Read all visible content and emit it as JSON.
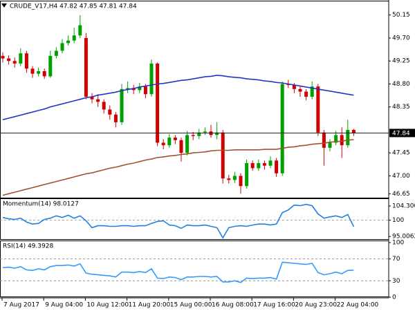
{
  "chart_data": [
    {
      "type": "candlestick",
      "title": "CRUDE_V17,H4  47.82 47.85 47.81 47.84",
      "categories": [
        "7 Aug 2017",
        null,
        null,
        null,
        null,
        null,
        null,
        "9 Aug 04:00",
        null,
        null,
        null,
        null,
        null,
        null,
        "10 Aug 12:00",
        null,
        null,
        null,
        null,
        null,
        null,
        "11 Aug 20:00",
        null,
        null,
        null,
        null,
        null,
        null,
        "15 Aug 00:00",
        null,
        null,
        null,
        null,
        null,
        null,
        "16 Aug 08:00",
        null,
        null,
        null,
        null,
        null,
        null,
        "17 Aug 16:00",
        null,
        null,
        null,
        null,
        null,
        null,
        "20 Aug 23:00",
        null,
        null,
        null,
        null,
        null,
        null,
        "22 Aug 04:00",
        null,
        null,
        null
      ],
      "open": [
        49.35,
        49.3,
        49.25,
        49.2,
        49.4,
        49.1,
        49.0,
        49.05,
        48.95,
        49.35,
        49.45,
        49.6,
        49.65,
        49.75,
        49.7,
        48.55,
        48.5,
        48.45,
        48.3,
        48.2,
        48.05,
        48.7,
        48.72,
        48.68,
        48.75,
        48.6,
        49.2,
        47.65,
        47.6,
        47.75,
        47.7,
        47.45,
        47.8,
        47.78,
        47.85,
        47.87,
        47.8,
        47.85,
        46.95,
        46.92,
        47.0,
        46.8,
        47.25,
        47.15,
        47.25,
        47.2,
        47.3,
        47.05,
        48.8,
        48.78,
        48.7,
        48.65,
        48.55,
        48.75,
        47.85,
        47.55,
        47.65,
        47.8,
        47.6,
        47.9
      ],
      "high": [
        49.42,
        49.36,
        49.32,
        49.5,
        49.45,
        49.15,
        49.12,
        49.1,
        49.45,
        49.52,
        49.68,
        49.75,
        49.9,
        50.15,
        49.8,
        48.62,
        48.6,
        48.5,
        48.38,
        48.25,
        48.8,
        48.85,
        48.78,
        48.82,
        48.8,
        49.28,
        49.22,
        47.72,
        47.82,
        47.8,
        47.75,
        47.88,
        47.86,
        47.92,
        47.95,
        48.0,
        48.05,
        47.9,
        47.02,
        47.08,
        47.05,
        47.32,
        47.3,
        47.32,
        47.3,
        47.38,
        47.35,
        48.85,
        48.88,
        48.82,
        48.75,
        48.7,
        48.85,
        48.8,
        47.9,
        47.72,
        47.88,
        47.95,
        48.1,
        47.92
      ],
      "low": [
        49.22,
        49.18,
        49.12,
        49.15,
        49.02,
        48.92,
        48.95,
        48.9,
        48.92,
        49.3,
        49.4,
        49.55,
        49.6,
        49.7,
        48.5,
        48.42,
        48.35,
        48.22,
        48.1,
        47.95,
        48.0,
        48.62,
        48.6,
        48.62,
        48.52,
        48.55,
        47.58,
        47.52,
        47.55,
        47.62,
        47.28,
        47.4,
        47.7,
        47.72,
        47.8,
        47.75,
        47.72,
        46.85,
        46.85,
        46.86,
        46.65,
        46.75,
        47.1,
        47.1,
        47.12,
        47.15,
        46.98,
        47.0,
        48.72,
        48.62,
        48.55,
        48.48,
        48.5,
        47.78,
        47.2,
        47.48,
        47.6,
        47.35,
        47.55,
        47.78
      ],
      "close": [
        49.3,
        49.25,
        49.2,
        49.4,
        49.1,
        49.0,
        49.05,
        48.95,
        49.35,
        49.45,
        49.6,
        49.65,
        49.75,
        49.95,
        48.55,
        48.5,
        48.45,
        48.3,
        48.2,
        48.05,
        48.7,
        48.72,
        48.68,
        48.75,
        48.6,
        49.2,
        47.65,
        47.6,
        47.75,
        47.7,
        47.45,
        47.8,
        47.78,
        47.85,
        47.87,
        47.8,
        47.85,
        46.95,
        46.92,
        47.0,
        46.8,
        47.25,
        47.15,
        47.25,
        47.2,
        47.3,
        47.05,
        48.8,
        48.78,
        48.7,
        48.65,
        48.55,
        48.75,
        47.85,
        47.55,
        47.65,
        47.8,
        47.6,
        47.9,
        47.84
      ],
      "up_color": "#00a000",
      "down_color": "#d00000",
      "series": [
        {
          "color": "#2233cc",
          "values": [
            48.1,
            48.13,
            48.16,
            48.19,
            48.22,
            48.25,
            48.28,
            48.31,
            48.35,
            48.38,
            48.41,
            48.44,
            48.47,
            48.5,
            48.53,
            48.55,
            48.58,
            48.6,
            48.62,
            48.64,
            48.67,
            48.69,
            48.71,
            48.74,
            48.76,
            48.78,
            48.8,
            48.81,
            48.83,
            48.85,
            48.87,
            48.88,
            48.9,
            48.92,
            48.94,
            48.95,
            48.97,
            48.96,
            48.94,
            48.93,
            48.92,
            48.9,
            48.89,
            48.88,
            48.86,
            48.85,
            48.83,
            48.82,
            48.8,
            48.78,
            48.76,
            48.74,
            48.72,
            48.7,
            48.68,
            48.66,
            48.64,
            48.62,
            48.6,
            48.58
          ]
        },
        {
          "color": "#a0522d",
          "values": [
            46.62,
            46.65,
            46.68,
            46.71,
            46.74,
            46.77,
            46.8,
            46.83,
            46.86,
            46.89,
            46.92,
            46.95,
            46.98,
            47.01,
            47.04,
            47.06,
            47.09,
            47.12,
            47.15,
            47.17,
            47.2,
            47.23,
            47.25,
            47.28,
            47.31,
            47.33,
            47.36,
            47.37,
            47.39,
            47.4,
            47.42,
            47.43,
            47.45,
            47.46,
            47.47,
            47.49,
            47.5,
            47.5,
            47.5,
            47.51,
            47.51,
            47.51,
            47.51,
            47.51,
            47.52,
            47.52,
            47.52,
            47.54,
            47.56,
            47.57,
            47.59,
            47.6,
            47.62,
            47.63,
            47.64,
            47.66,
            47.67,
            47.68,
            47.7,
            47.71
          ]
        }
      ],
      "last_price": 47.84,
      "ylim": [
        46.56,
        50.39
      ],
      "yticks": [
        50.15,
        {
          "value": 49.7,
          "label": "49.70"
        },
        49.25,
        {
          "value": 48.8,
          "label": "48.80"
        },
        48.35,
        47.45,
        {
          "value": 47.0,
          "label": "47.00"
        },
        46.65
      ]
    },
    {
      "type": "line",
      "title": "Momentum(14) 98.0127",
      "series": [
        {
          "color": "#1e7fe0",
          "values": [
            100.8,
            100.4,
            100.2,
            100.6,
            99.4,
            98.8,
            99.0,
            100.2,
            100.6,
            101.3,
            100.8,
            101.5,
            100.6,
            101.3,
            99.8,
            97.7,
            98.3,
            98.3,
            98.1,
            98.1,
            98.3,
            98.3,
            98.1,
            98.3,
            98.3,
            99.0,
            99.6,
            99.8,
            98.5,
            98.3,
            97.5,
            98.5,
            98.3,
            98.3,
            98.5,
            98.1,
            97.7,
            94.6,
            97.7,
            98.1,
            98.3,
            98.1,
            98.5,
            98.8,
            98.8,
            98.5,
            98.8,
            102.3,
            103.1,
            104.6,
            104.4,
            104.8,
            104.4,
            101.9,
            100.6,
            101.0,
            101.3,
            100.8,
            101.7,
            98.0127
          ]
        }
      ],
      "levels": [
        100
      ],
      "ylim": [
        94.0,
        106.0
      ],
      "yticks": [
        104.3006,
        100,
        95.0062
      ]
    },
    {
      "type": "line",
      "title": "RSI(14) 49.3928",
      "series": [
        {
          "color": "#3399ff",
          "values": [
            54,
            55,
            53,
            56,
            50,
            49,
            52,
            50,
            56,
            58,
            58,
            59,
            57,
            61,
            44,
            42,
            41,
            40,
            39,
            37,
            46,
            46,
            45,
            47,
            45,
            52,
            35,
            34,
            37,
            36,
            32,
            37,
            37,
            38,
            38,
            37,
            38,
            28,
            28,
            30,
            27,
            35,
            34,
            35,
            35,
            36,
            33,
            64,
            63,
            62,
            61,
            60,
            62,
            45,
            41,
            43,
            46,
            43,
            49,
            49.3928
          ]
        }
      ],
      "levels": [
        70,
        30
      ],
      "ylim": [
        0,
        100
      ],
      "yticks": [
        100,
        70,
        30,
        0
      ]
    }
  ]
}
